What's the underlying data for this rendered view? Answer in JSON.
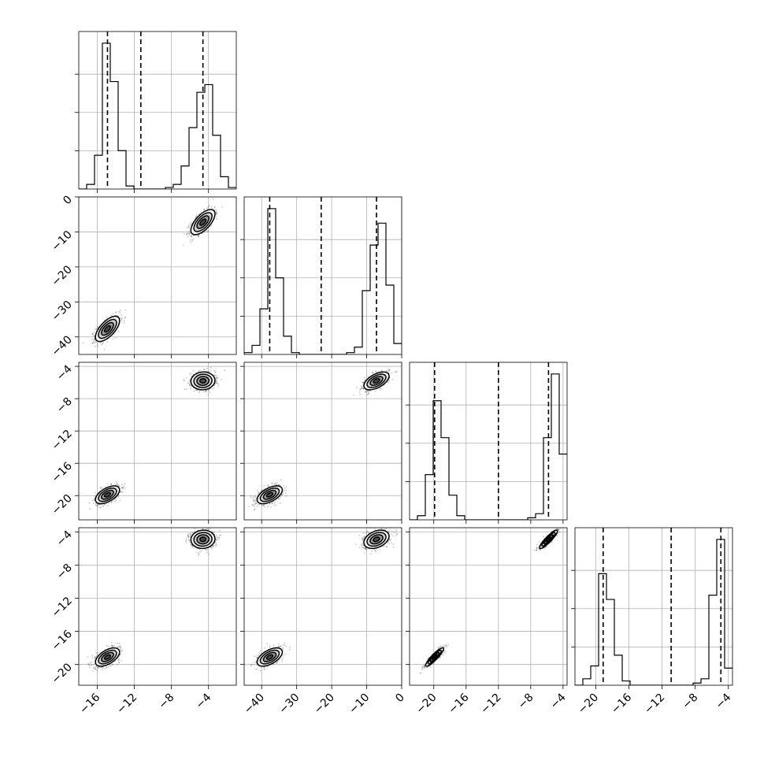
{
  "chart_data": {
    "type": "corner",
    "grid": true,
    "variables": [
      {
        "range": [
          -18,
          -1
        ],
        "ticks": [
          -16,
          -12,
          -8,
          -4
        ],
        "tick_labels": [
          "−16",
          "−12",
          "−8",
          "−4"
        ],
        "quantiles": [
          -14.9,
          -11.3,
          -4.6
        ],
        "histogram": {
          "edges": [
            -18.0,
            -17.15,
            -16.3,
            -15.45,
            -14.6,
            -13.75,
            -12.9,
            -12.05,
            -11.2,
            -10.35,
            -9.5,
            -8.65,
            -7.8,
            -6.95,
            -6.1,
            -5.25,
            -4.4,
            -3.55,
            -2.7,
            -1.85,
            -1.0
          ],
          "counts": [
            0,
            3,
            22,
            95,
            70,
            25,
            2,
            0,
            0,
            0,
            0,
            1,
            3,
            15,
            40,
            63,
            68,
            35,
            8,
            1
          ]
        }
      },
      {
        "range": [
          -45,
          0
        ],
        "ticks": [
          -40,
          -30,
          -20,
          -10,
          0
        ],
        "tick_labels": [
          "−40",
          "−30",
          "−20",
          "−10",
          "0"
        ],
        "quantiles": [
          -37.7,
          -23.0,
          -7.2
        ],
        "histogram": {
          "edges": [
            -45.0,
            -42.75,
            -40.5,
            -38.25,
            -36.0,
            -33.75,
            -31.5,
            -29.25,
            -27.0,
            -24.75,
            -22.5,
            -20.25,
            -18.0,
            -15.75,
            -13.5,
            -11.25,
            -9.0,
            -6.75,
            -4.5,
            -2.25,
            0.0
          ],
          "counts": [
            1,
            5,
            25,
            80,
            42,
            10,
            1,
            0,
            0,
            0,
            0,
            0,
            0,
            1,
            4,
            35,
            60,
            72,
            38,
            6
          ]
        }
      },
      {
        "range": [
          -23,
          -3.5
        ],
        "ticks": [
          -20,
          -16,
          -12,
          -8,
          -4
        ],
        "tick_labels": [
          "−20",
          "−16",
          "−12",
          "−8",
          "−4"
        ],
        "quantiles": [
          -19.9,
          -12.0,
          -5.8
        ],
        "histogram": {
          "edges": [
            -23.0,
            -22.025,
            -21.05,
            -20.075,
            -19.1,
            -18.125,
            -17.15,
            -16.175,
            -15.2,
            -14.225,
            -13.25,
            -12.275,
            -11.3,
            -10.325,
            -9.35,
            -8.375,
            -7.4,
            -6.425,
            -5.45,
            -4.475,
            -3.5
          ],
          "counts": [
            0,
            2,
            22,
            58,
            40,
            12,
            2,
            0,
            0,
            0,
            0,
            0,
            0,
            0,
            0,
            1,
            3,
            40,
            71,
            32
          ]
        }
      },
      {
        "range": [
          -22.5,
          -3.5
        ],
        "ticks": [
          -20,
          -16,
          -12,
          -8,
          -4
        ],
        "tick_labels": [
          "−20",
          "−16",
          "−12",
          "−8",
          "−4"
        ],
        "quantiles": [
          -19.1,
          -10.9,
          -4.9
        ],
        "histogram": {
          "edges": [
            -22.5,
            -21.55,
            -20.6,
            -19.65,
            -18.7,
            -17.75,
            -16.8,
            -15.85,
            -14.9,
            -13.95,
            -13.0,
            -12.05,
            -11.1,
            -10.15,
            -9.2,
            -8.25,
            -7.3,
            -6.35,
            -5.4,
            -4.45,
            -3.5
          ],
          "counts": [
            0,
            3,
            9,
            52,
            40,
            14,
            2,
            0,
            0,
            0,
            0,
            0,
            0,
            0,
            0,
            1,
            3,
            42,
            68,
            8
          ]
        }
      }
    ],
    "joint": {
      "mode_a": [
        -14.9,
        -37.7,
        -19.9,
        -19.1
      ],
      "mode_b": [
        -4.6,
        -7.2,
        -5.8,
        -4.9
      ],
      "scale": [
        0.65,
        1.8,
        0.55,
        0.55
      ],
      "pair_correlation": {
        "1-0": 0.65,
        "2-0": 0.55,
        "2-1": 0.55,
        "3-0": 0.55,
        "3-1": 0.55,
        "3-2": 0.9
      },
      "pair_correlation_mode_b": {
        "2-0": 0.05,
        "3-0": 0.05,
        "2-1": 0.55,
        "3-1": 0.35,
        "3-2": 0.9
      }
    },
    "contour_levels": [
      0.5,
      1.0,
      1.5,
      2.0
    ],
    "colors": {
      "line": "#000000",
      "grid": "#b0b0b0",
      "background": "#ffffff",
      "contour_fills": [
        "#f2f2f2",
        "#d0d0d0",
        "#9a9a9a",
        "#4a4a4a"
      ]
    }
  }
}
